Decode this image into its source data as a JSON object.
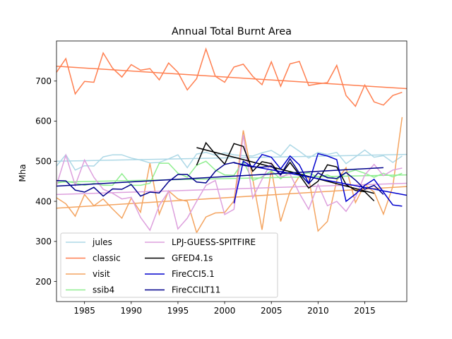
{
  "chart_data": {
    "type": "line",
    "title": "Annual Total Burnt Area",
    "xlabel": "",
    "ylabel": "Mha",
    "xlim": [
      1982,
      2019.5
    ],
    "ylim": [
      150,
      800
    ],
    "xticks": [
      1985,
      1990,
      1995,
      2000,
      2005,
      2010,
      2015
    ],
    "yticks": [
      200,
      300,
      400,
      500,
      600,
      700
    ],
    "grid": false,
    "legend_position": "lower-left",
    "series": [
      {
        "name": "jules",
        "color": "#add8e6",
        "x": [
          1982,
          1983,
          1984,
          1985,
          1986,
          1987,
          1988,
          1989,
          1990,
          1991,
          1992,
          1993,
          1994,
          1995,
          1996,
          1997,
          1998,
          1999,
          2000,
          2001,
          2002,
          2003,
          2004,
          2005,
          2006,
          2007,
          2008,
          2009,
          2010,
          2011,
          2012,
          2013,
          2014,
          2015,
          2016,
          2017,
          2018,
          2019
        ],
        "y": [
          488,
          516,
          478,
          489,
          488,
          511,
          516,
          516,
          508,
          503,
          496,
          497,
          506,
          516,
          484,
          518,
          522,
          515,
          521,
          516,
          514,
          513,
          521,
          527,
          513,
          541,
          525,
          508,
          522,
          517,
          522,
          494,
          511,
          528,
          510,
          514,
          497,
          513
        ],
        "trend": [
          500,
          517
        ]
      },
      {
        "name": "classic",
        "color": "#ff7f50",
        "x": [
          1982,
          1983,
          1984,
          1985,
          1986,
          1987,
          1988,
          1989,
          1990,
          1991,
          1992,
          1993,
          1994,
          1995,
          1996,
          1997,
          1998,
          1999,
          2000,
          2001,
          2002,
          2003,
          2004,
          2005,
          2006,
          2007,
          2008,
          2009,
          2010,
          2011,
          2012,
          2013,
          2014,
          2015,
          2016,
          2017,
          2018,
          2019
        ],
        "y": [
          722,
          756,
          668,
          699,
          697,
          770,
          732,
          710,
          741,
          727,
          731,
          703,
          745,
          722,
          678,
          706,
          780,
          712,
          697,
          735,
          742,
          712,
          691,
          748,
          687,
          743,
          749,
          689,
          693,
          696,
          739,
          664,
          637,
          690,
          648,
          640,
          664,
          672
        ],
        "trend": [
          737,
          681
        ]
      },
      {
        "name": "visit",
        "color": "#f4a460",
        "x": [
          1982,
          1983,
          1984,
          1985,
          1986,
          1987,
          1988,
          1989,
          1990,
          1991,
          1992,
          1993,
          1994,
          1995,
          1996,
          1997,
          1998,
          1999,
          2000,
          2001,
          2002,
          2003,
          2004,
          2005,
          2006,
          2007,
          2008,
          2009,
          2010,
          2011,
          2012,
          2013,
          2014,
          2015,
          2016,
          2017,
          2018,
          2019
        ],
        "y": [
          409,
          394,
          363,
          417,
          389,
          406,
          381,
          358,
          408,
          373,
          495,
          368,
          426,
          406,
          400,
          322,
          361,
          371,
          372,
          401,
          577,
          456,
          329,
          480,
          350,
          425,
          463,
          459,
          326,
          350,
          452,
          484,
          397,
          442,
          423,
          368,
          437,
          610
        ],
        "trend": [
          383,
          437
        ]
      },
      {
        "name": "ssib4",
        "color": "#90ee90",
        "x": [
          1982,
          1983,
          1984,
          1985,
          1986,
          1987,
          1988,
          1989,
          1990,
          1991,
          1992,
          1993,
          1994,
          1995,
          1996,
          1997,
          1998,
          1999,
          2000,
          2001,
          2002,
          2003,
          2004,
          2005,
          2006,
          2007,
          2008,
          2009,
          2010,
          2011,
          2012,
          2013,
          2014,
          2015,
          2016,
          2017,
          2018,
          2019
        ],
        "y": [
          445,
          450,
          446,
          440,
          445,
          440,
          440,
          469,
          440,
          440,
          445,
          495,
          495,
          470,
          460,
          490,
          500,
          478,
          466,
          465,
          500,
          452,
          461,
          476,
          456,
          475,
          466,
          471,
          460,
          466,
          455,
          471,
          478,
          470,
          460,
          470,
          461,
          470
        ],
        "trend": [
          448,
          466
        ]
      },
      {
        "name": "LPJ-GUESS-SPITFIRE",
        "color": "#dda0dd",
        "x": [
          1982,
          1983,
          1984,
          1985,
          1986,
          1987,
          1988,
          1989,
          1990,
          1991,
          1992,
          1993,
          1994,
          1995,
          1996,
          1997,
          1998,
          1999,
          2000,
          2001,
          2002,
          2003,
          2004,
          2005,
          2006,
          2007,
          2008,
          2009,
          2010,
          2011,
          2012,
          2013,
          2014,
          2015,
          2016,
          2017,
          2018,
          2019
        ],
        "y": [
          440,
          515,
          440,
          503,
          460,
          430,
          420,
          406,
          410,
          360,
          328,
          390,
          425,
          331,
          358,
          400,
          440,
          452,
          367,
          380,
          566,
          408,
          455,
          497,
          461,
          468,
          420,
          380,
          442,
          389,
          400,
          375,
          410,
          466,
          492,
          464,
          478,
          483
        ],
        "trend": [
          417,
          445
        ]
      },
      {
        "name": "GFED4.1s",
        "color": "#000000",
        "x": [
          1997,
          1998,
          1999,
          2000,
          2001,
          2002,
          2003,
          2004,
          2005,
          2006,
          2007,
          2008,
          2009,
          2010,
          2011,
          2012,
          2013,
          2014,
          2015,
          2016
        ],
        "y": [
          490,
          546,
          518,
          493,
          544,
          537,
          475,
          499,
          494,
          466,
          497,
          466,
          433,
          450,
          491,
          486,
          442,
          427,
          424,
          401
        ],
        "trend_x": [
          1997,
          2016
        ],
        "trend": [
          534,
          420
        ]
      },
      {
        "name": "FireCCI5.1",
        "color": "#0000cd",
        "x": [
          2001,
          2002,
          2003,
          2004,
          2005,
          2006,
          2007,
          2008,
          2009,
          2010,
          2011,
          2012,
          2013,
          2014,
          2015,
          2016,
          2017,
          2018,
          2019
        ],
        "y": [
          395,
          500,
          485,
          517,
          510,
          481,
          513,
          491,
          445,
          519,
          513,
          504,
          400,
          418,
          440,
          455,
          423,
          391,
          388
        ],
        "trend_x": [
          2001,
          2019.5
        ],
        "trend": [
          496,
          415
        ]
      },
      {
        "name": "FireCCILT11",
        "color": "#00008b",
        "x": [
          1982,
          1983,
          1984,
          1985,
          1986,
          1987,
          1988,
          1989,
          1990,
          1991,
          1992,
          1993,
          1994,
          1995,
          1996,
          1997,
          1998,
          1999,
          2000,
          2001,
          2002,
          2003,
          2004,
          2005,
          2006,
          2007,
          2008,
          2009,
          2010,
          2011,
          2012,
          2013,
          2014,
          2015,
          2016,
          2017
        ],
        "y": [
          452,
          451,
          428,
          423,
          435,
          413,
          431,
          430,
          442,
          413,
          423,
          421,
          449,
          467,
          467,
          448,
          446,
          475,
          492,
          497,
          490,
          486,
          485,
          488,
          466,
          506,
          470,
          444,
          471,
          459,
          457,
          472,
          453,
          430,
          440,
          417
        ],
        "trend_x": [
          1982,
          2017
        ],
        "trend": [
          438,
          484
        ]
      }
    ]
  }
}
